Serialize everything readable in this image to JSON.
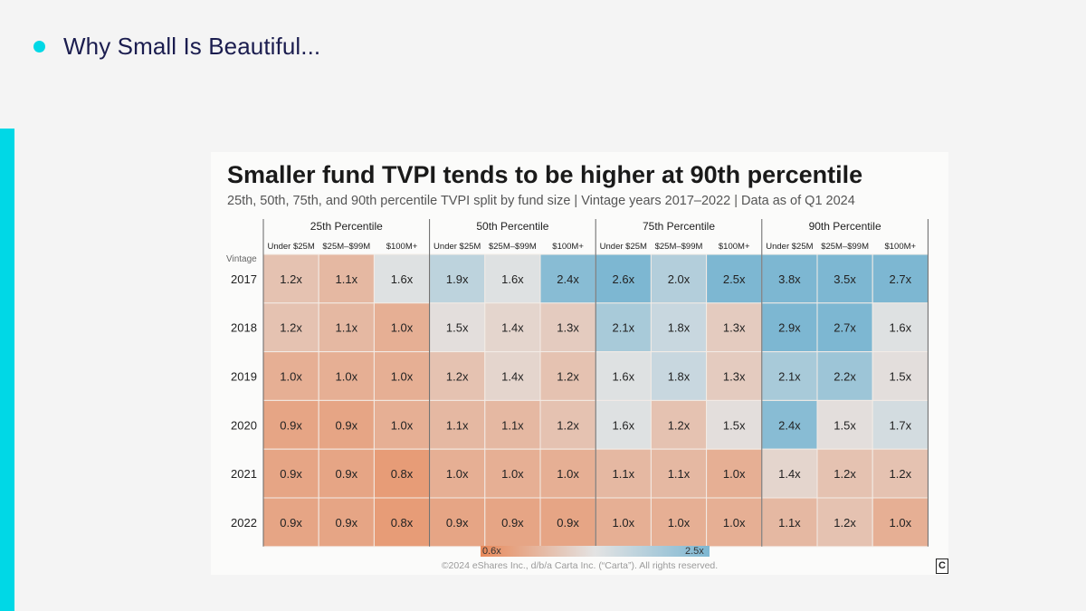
{
  "slide": {
    "title": "Why Small Is Beautiful..."
  },
  "colors": {
    "accent": "#00d8e6",
    "low": "#e8895a",
    "mid": "#e3e3e3",
    "high": "#7db7d2"
  },
  "chart_data": {
    "type": "heatmap",
    "title": "Smaller fund TVPI tends to be higher at 90th percentile",
    "subtitle": "25th, 50th, 75th, and 90th percentile TVPI split by fund size | Vintage years 2017–2022 | Data as of Q1 2024",
    "row_axis_label": "Vintage",
    "rows": [
      "2017",
      "2018",
      "2019",
      "2020",
      "2021",
      "2022"
    ],
    "groups": [
      {
        "name": "25th Percentile",
        "columns": [
          "Under $25M",
          "$25M–$99M",
          "$100M+"
        ],
        "values": [
          [
            1.2,
            1.1,
            1.6
          ],
          [
            1.2,
            1.1,
            1.0
          ],
          [
            1.0,
            1.0,
            1.0
          ],
          [
            0.9,
            0.9,
            1.0
          ],
          [
            0.9,
            0.9,
            0.8
          ],
          [
            0.9,
            0.9,
            0.8
          ]
        ],
        "labels": [
          [
            "1.2x",
            "1.1x",
            "1.6x"
          ],
          [
            "1.2x",
            "1.1x",
            "1.0x"
          ],
          [
            "1.0x",
            "1.0x",
            "1.0x"
          ],
          [
            "0.9x",
            "0.9x",
            "1.0x"
          ],
          [
            "0.9x",
            "0.9x",
            "0.8x"
          ],
          [
            "0.9x",
            "0.9x",
            "0.8x"
          ]
        ]
      },
      {
        "name": "50th Percentile",
        "columns": [
          "Under $25M",
          "$25M–$99M",
          "$100M+"
        ],
        "values": [
          [
            1.9,
            1.6,
            2.4
          ],
          [
            1.5,
            1.4,
            1.3
          ],
          [
            1.2,
            1.4,
            1.2
          ],
          [
            1.1,
            1.1,
            1.2
          ],
          [
            1.0,
            1.0,
            1.0
          ],
          [
            0.9,
            0.9,
            0.9
          ]
        ],
        "labels": [
          [
            "1.9x",
            "1.6x",
            "2.4x"
          ],
          [
            "1.5x",
            "1.4x",
            "1.3x"
          ],
          [
            "1.2x",
            "1.4x",
            "1.2x"
          ],
          [
            "1.1x",
            "1.1x",
            "1.2x"
          ],
          [
            "1.0x",
            "1.0x",
            "1.0x"
          ],
          [
            "0.9x",
            "0.9x",
            "0.9x"
          ]
        ]
      },
      {
        "name": "75th Percentile",
        "columns": [
          "Under $25M",
          "$25M–$99M",
          "$100M+"
        ],
        "values": [
          [
            2.6,
            2.0,
            2.5
          ],
          [
            2.1,
            1.8,
            1.3
          ],
          [
            1.6,
            1.8,
            1.3
          ],
          [
            1.6,
            1.2,
            1.5
          ],
          [
            1.1,
            1.1,
            1.0
          ],
          [
            1.0,
            1.0,
            1.0
          ]
        ],
        "labels": [
          [
            "2.6x",
            "2.0x",
            "2.5x"
          ],
          [
            "2.1x",
            "1.8x",
            "1.3x"
          ],
          [
            "1.6x",
            "1.8x",
            "1.3x"
          ],
          [
            "1.6x",
            "1.2x",
            "1.5x"
          ],
          [
            "1.1x",
            "1.1x",
            "1.0x"
          ],
          [
            "1.0x",
            "1.0x",
            "1.0x"
          ]
        ]
      },
      {
        "name": "90th Percentile",
        "columns": [
          "Under $25M",
          "$25M–$99M",
          "$100M+"
        ],
        "values": [
          [
            3.8,
            3.5,
            2.7
          ],
          [
            2.9,
            2.7,
            1.6
          ],
          [
            2.1,
            2.2,
            1.5
          ],
          [
            2.4,
            1.5,
            1.7
          ],
          [
            1.4,
            1.2,
            1.2
          ],
          [
            1.1,
            1.2,
            1.0
          ]
        ],
        "labels": [
          [
            "3.8x",
            "3.5x",
            "2.7x"
          ],
          [
            "2.9x",
            "2.7x",
            "1.6x"
          ],
          [
            "2.1x",
            "2.2x",
            "1.5x"
          ],
          [
            "2.4x",
            "1.5x",
            "1.7x"
          ],
          [
            "1.4x",
            "1.2x",
            "1.2x"
          ],
          [
            "1.1x",
            "1.2x",
            "1.0x"
          ]
        ]
      }
    ],
    "color_scale": {
      "min": 0.6,
      "max": 2.5,
      "min_label": "0.6x",
      "max_label": "2.5x"
    }
  },
  "footer": {
    "copyright": "©2024 eShares Inc., d/b/a Carta Inc. (“Carta”). All rights reserved.",
    "logo_letter": "C"
  }
}
